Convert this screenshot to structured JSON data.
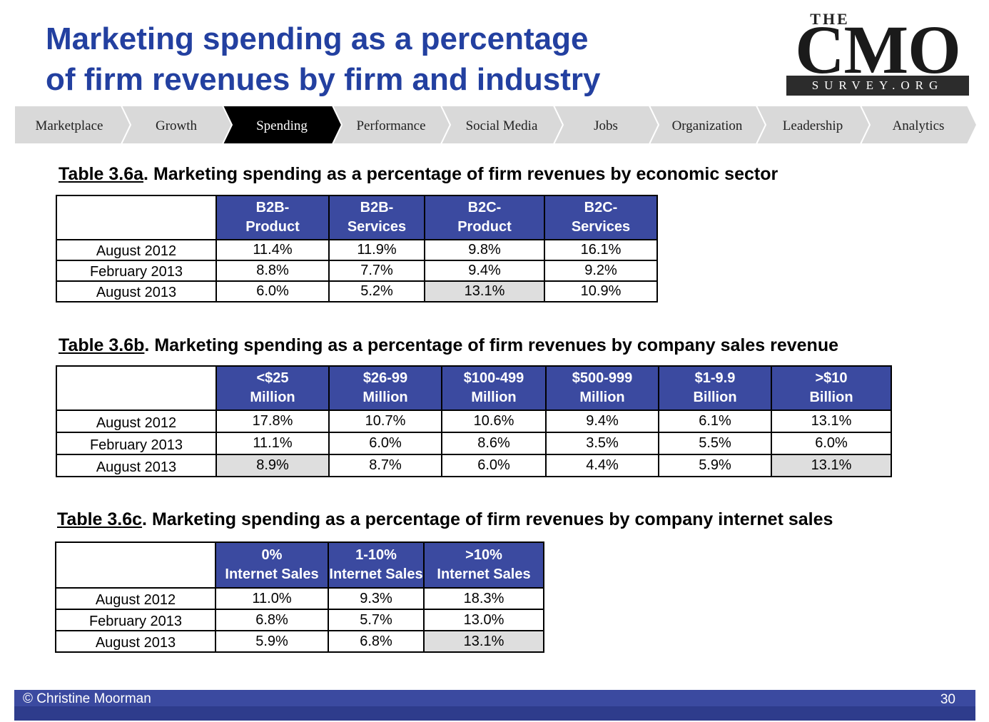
{
  "title": {
    "line1": "Marketing spending as a percentage",
    "line2": "of firm revenues by firm and industry"
  },
  "logo": {
    "the": "THE",
    "cmo": "CMO",
    "sub": "SURVEY.ORG"
  },
  "nav": {
    "items": [
      "Marketplace",
      "Growth",
      "Spending",
      "Performance",
      "Social Media",
      "Jobs",
      "Organization",
      "Leadership",
      "Analytics"
    ],
    "active": "Spending"
  },
  "table_a": {
    "num": "Table 3.6a",
    "caption": ".  Marketing spending as a percentage of firm revenues by  economic sector",
    "headers": [
      [
        "B2B-",
        "Product"
      ],
      [
        "B2B-",
        "Services"
      ],
      [
        "B2C-",
        "Product"
      ],
      [
        "B2C-",
        "Services"
      ]
    ],
    "rows": [
      {
        "label": "August 2012",
        "values": [
          "11.4%",
          "11.9%",
          "9.8%",
          "16.1%"
        ]
      },
      {
        "label": "February 2013",
        "values": [
          "8.8%",
          "7.7%",
          "9.4%",
          "9.2%"
        ]
      },
      {
        "label": "August 2013",
        "values": [
          "6.0%",
          "5.2%",
          "13.1%",
          "10.9%"
        ]
      }
    ]
  },
  "table_b": {
    "num": "Table 3.6b",
    "caption": ".  Marketing spending as a percentage of firm revenues by company sales revenue",
    "headers": [
      [
        "<$25",
        "Million"
      ],
      [
        "$26-99",
        "Million"
      ],
      [
        "$100-499",
        "Million"
      ],
      [
        "$500-999",
        "Million"
      ],
      [
        "$1-9.9",
        "Billion"
      ],
      [
        ">$10",
        "Billion"
      ]
    ],
    "rows": [
      {
        "label": "August 2012",
        "values": [
          "17.8%",
          "10.7%",
          "10.6%",
          "9.4%",
          "6.1%",
          "13.1%"
        ]
      },
      {
        "label": "February 2013",
        "values": [
          "11.1%",
          "6.0%",
          "8.6%",
          "3.5%",
          "5.5%",
          "6.0%"
        ]
      },
      {
        "label": "August 2013",
        "values": [
          "8.9%",
          "8.7%",
          "6.0%",
          "4.4%",
          "5.9%",
          "13.1%"
        ]
      }
    ]
  },
  "table_c": {
    "num": "Table 3.6c",
    "caption": ".  Marketing spending as a percentage of firm revenues by company internet sales",
    "headers": [
      [
        "0%",
        "Internet Sales"
      ],
      [
        "1-10%",
        "Internet Sales"
      ],
      [
        ">10%",
        "Internet Sales"
      ]
    ],
    "rows": [
      {
        "label": "August 2012",
        "values": [
          "11.0%",
          "9.3%",
          "18.3%"
        ]
      },
      {
        "label": "February 2013",
        "values": [
          "6.8%",
          "5.7%",
          "13.0%"
        ]
      },
      {
        "label": "August 2013",
        "values": [
          "5.9%",
          "6.8%",
          "13.1%"
        ]
      }
    ]
  },
  "footer": {
    "copyright": "© Christine Moorman",
    "page": "30"
  }
}
